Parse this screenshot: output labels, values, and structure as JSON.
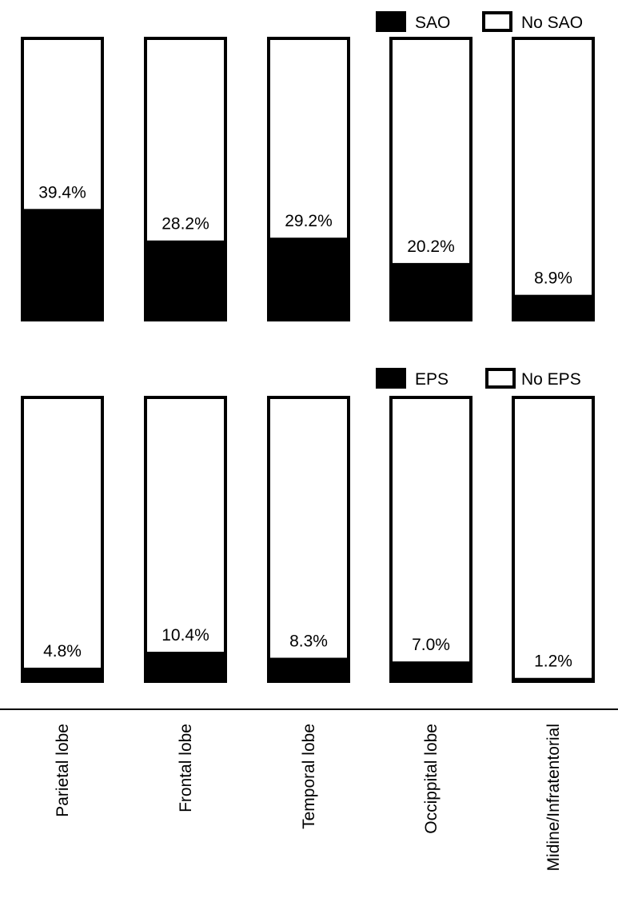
{
  "chart_data": {
    "type": "bar",
    "stacked_percent": true,
    "categories": [
      "Parietal lobe",
      "Frontal lobe",
      "Temporal lobe",
      "Occippital lobe",
      "Midine/Infratentorial"
    ],
    "ylim": [
      0,
      100
    ],
    "panels": [
      {
        "legend": [
          {
            "label": "SAO",
            "color": "#000000"
          },
          {
            "label": "No SAO",
            "color": "#ffffff"
          }
        ],
        "legend_position": "top-right",
        "series": [
          {
            "name": "SAO",
            "values": [
              39.4,
              28.2,
              29.2,
              20.2,
              8.9
            ]
          },
          {
            "name": "No SAO",
            "values": [
              60.6,
              71.8,
              70.8,
              79.8,
              91.1
            ]
          }
        ],
        "labels": [
          "39.4%",
          "28.2%",
          "29.2%",
          "20.2%",
          "8.9%"
        ]
      },
      {
        "legend": [
          {
            "label": "EPS",
            "color": "#000000"
          },
          {
            "label": "No EPS",
            "color": "#ffffff"
          }
        ],
        "legend_position": "top-right",
        "series": [
          {
            "name": "EPS",
            "values": [
              4.8,
              10.4,
              8.3,
              7.0,
              1.2
            ]
          },
          {
            "name": "No EPS",
            "values": [
              95.2,
              89.6,
              91.7,
              93.0,
              98.8
            ]
          }
        ],
        "labels": [
          "4.8%",
          "10.4%",
          "8.3%",
          "7.0%",
          "1.2%"
        ]
      }
    ]
  }
}
